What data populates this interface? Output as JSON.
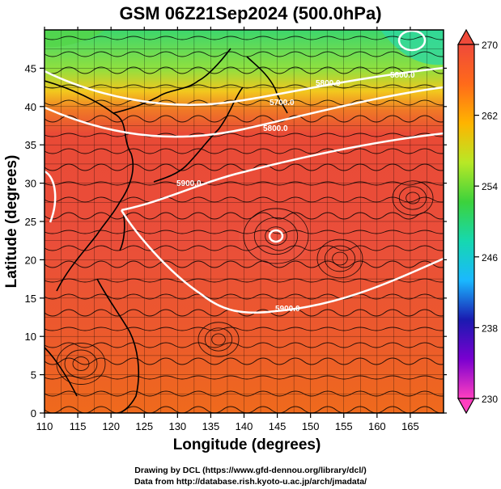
{
  "title": "GSM 06Z21Sep2024 (500.0hPa)",
  "xlabel": "Longitude (degrees)",
  "ylabel": "Latitude  (degrees)",
  "x_ticks": [
    "110",
    "115",
    "120",
    "125",
    "130",
    "135",
    "140",
    "145",
    "150",
    "155",
    "160",
    "165"
  ],
  "y_ticks": [
    "0",
    "5",
    "10",
    "15",
    "20",
    "25",
    "30",
    "35",
    "40",
    "45"
  ],
  "colorbar": {
    "labels": [
      "270",
      "262",
      "254",
      "246",
      "238",
      "230"
    ],
    "stops": [
      "#ff3fc0",
      "#7a00d0",
      "#1a1ab0",
      "#1ab8ff",
      "#16d8b0",
      "#3cd23c",
      "#b8e826",
      "#ffb400",
      "#ff6a1a",
      "#ef4a3a"
    ]
  },
  "contour_labels": [
    "5700.0",
    "5800.0",
    "5900.0",
    "5900.0",
    "5800.0",
    "5800.0"
  ],
  "credits": {
    "line1": "Drawing by DCL (https://www.gfd-dennou.org/library/dcl/)",
    "line2": "Data from http://database.rish.kyoto-u.ac.jp/arch/jmadata/"
  },
  "chart_data": {
    "type": "heatmap",
    "variable": "500 hPa temperature (K) with geopotential height contours and wind streamlines",
    "xlim": [
      110,
      170
    ],
    "ylim": [
      0,
      50
    ],
    "color_range": [
      230,
      270
    ],
    "colorbar_ticks": [
      270,
      262,
      254,
      246,
      238,
      230
    ],
    "contour_levels": [
      5700,
      5800,
      5900
    ],
    "approx_temperature_by_latitude": [
      {
        "lat": 0,
        "value": 267
      },
      {
        "lat": 10,
        "value": 268
      },
      {
        "lat": 20,
        "value": 268
      },
      {
        "lat": 30,
        "value": 268
      },
      {
        "lat": 35,
        "value": 267
      },
      {
        "lat": 40,
        "value": 263
      },
      {
        "lat": 45,
        "value": 257
      },
      {
        "lat": 50,
        "value": 252
      }
    ]
  }
}
